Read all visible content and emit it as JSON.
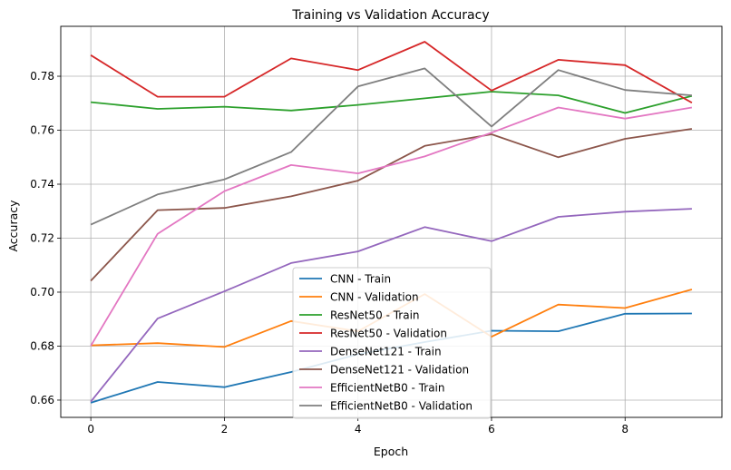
{
  "chart_data": {
    "type": "line",
    "title": "Training vs Validation Accuracy",
    "xlabel": "Epoch",
    "ylabel": "Accuracy",
    "xlim": [
      -0.45,
      9.45
    ],
    "ylim": [
      0.6536,
      0.7985
    ],
    "xticks": [
      "0",
      "2",
      "4",
      "6",
      "8"
    ],
    "xtick_values": [
      0,
      2,
      4,
      6,
      8
    ],
    "yticks": [
      "0.66",
      "0.68",
      "0.70",
      "0.72",
      "0.74",
      "0.76",
      "0.78"
    ],
    "ytick_values": [
      0.66,
      0.68,
      0.7,
      0.72,
      0.74,
      0.76,
      0.78
    ],
    "grid": true,
    "legend_position": "lower-center",
    "x": [
      0,
      1,
      2,
      3,
      4,
      5,
      6,
      7,
      8,
      9
    ],
    "series": [
      {
        "name": "CNN - Train",
        "color": "#1f77b4",
        "values": [
          0.659,
          0.6667,
          0.6648,
          0.6704,
          0.677,
          0.6815,
          0.6857,
          0.6855,
          0.692,
          0.6921
        ]
      },
      {
        "name": "CNN - Validation",
        "color": "#ff7f0e",
        "values": [
          0.6803,
          0.6811,
          0.6797,
          0.6893,
          0.6855,
          0.6993,
          0.6835,
          0.6954,
          0.6941,
          0.701
        ]
      },
      {
        "name": "ResNet50 - Train",
        "color": "#2ca02c",
        "values": [
          0.7704,
          0.7679,
          0.7687,
          0.7673,
          0.7694,
          0.7718,
          0.7743,
          0.7729,
          0.7664,
          0.7727
        ]
      },
      {
        "name": "ResNet50 - Validation",
        "color": "#d62728",
        "values": [
          0.7878,
          0.7724,
          0.7724,
          0.7866,
          0.7823,
          0.7928,
          0.7747,
          0.7861,
          0.7841,
          0.7702
        ]
      },
      {
        "name": "DenseNet121 - Train",
        "color": "#9467bd",
        "values": [
          0.6594,
          0.6902,
          0.7003,
          0.7108,
          0.7151,
          0.7241,
          0.7189,
          0.7279,
          0.7298,
          0.7309
        ]
      },
      {
        "name": "DenseNet121 - Validation",
        "color": "#8c564b",
        "values": [
          0.7042,
          0.7304,
          0.7312,
          0.7355,
          0.7413,
          0.7542,
          0.7585,
          0.75,
          0.7568,
          0.7605
        ]
      },
      {
        "name": "EfficientNetB0 - Train",
        "color": "#e377c2",
        "values": [
          0.6801,
          0.7216,
          0.7374,
          0.7471,
          0.744,
          0.7503,
          0.7591,
          0.7684,
          0.7643,
          0.7684
        ]
      },
      {
        "name": "EfficientNetB0 - Validation",
        "color": "#7f7f7f",
        "values": [
          0.725,
          0.7362,
          0.7418,
          0.7519,
          0.7762,
          0.7829,
          0.7614,
          0.7823,
          0.7749,
          0.7729
        ]
      }
    ]
  }
}
